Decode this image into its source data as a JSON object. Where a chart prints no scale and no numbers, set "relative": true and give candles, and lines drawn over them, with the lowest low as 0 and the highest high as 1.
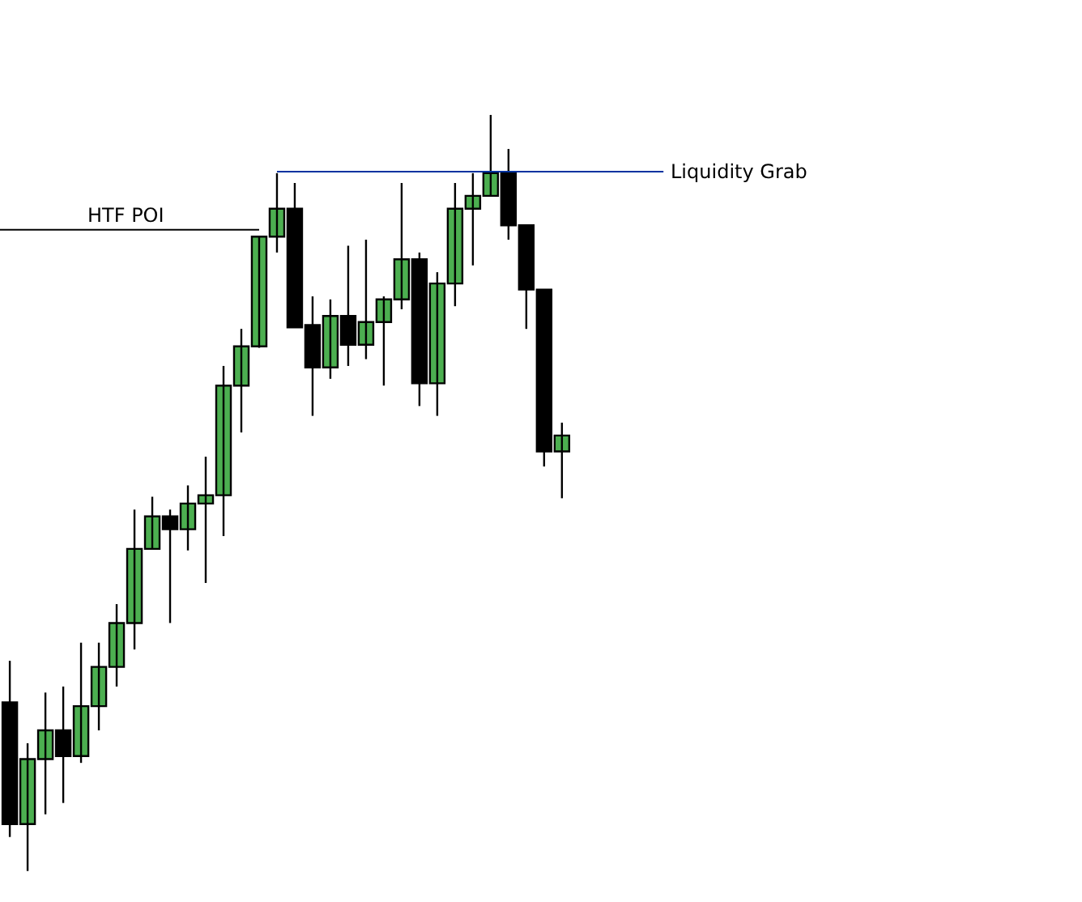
{
  "chart_data": {
    "type": "candlestick",
    "relative": true,
    "categories": [
      null,
      null,
      null,
      null,
      null,
      null,
      null,
      null,
      null,
      null,
      null,
      null,
      null,
      null,
      null,
      null,
      null,
      null,
      null,
      null,
      null,
      null,
      null,
      null,
      null,
      null,
      null,
      null,
      null,
      null,
      null,
      null
    ],
    "ohlc": [
      [
        0.223,
        0.278,
        0.045,
        0.062
      ],
      [
        0.062,
        0.169,
        0.0,
        0.148
      ],
      [
        0.148,
        0.236,
        0.075,
        0.186
      ],
      [
        0.186,
        0.244,
        0.09,
        0.152
      ],
      [
        0.152,
        0.302,
        0.143,
        0.218
      ],
      [
        0.218,
        0.302,
        0.186,
        0.27
      ],
      [
        0.27,
        0.353,
        0.244,
        0.328
      ],
      [
        0.328,
        0.478,
        0.293,
        0.426
      ],
      [
        0.426,
        0.495,
        0.426,
        0.469
      ],
      [
        0.469,
        0.478,
        0.328,
        0.452
      ],
      [
        0.452,
        0.51,
        0.424,
        0.486
      ],
      [
        0.486,
        0.548,
        0.381,
        0.497
      ],
      [
        0.497,
        0.668,
        0.443,
        0.642
      ],
      [
        0.642,
        0.717,
        0.58,
        0.694
      ],
      [
        0.694,
        0.839,
        0.692,
        0.839
      ],
      [
        0.839,
        0.923,
        0.818,
        0.876
      ],
      [
        0.876,
        0.91,
        0.719,
        0.719
      ],
      [
        0.722,
        0.76,
        0.602,
        0.666
      ],
      [
        0.666,
        0.756,
        0.651,
        0.734
      ],
      [
        0.734,
        0.827,
        0.668,
        0.696
      ],
      [
        0.696,
        0.835,
        0.677,
        0.726
      ],
      [
        0.726,
        0.76,
        0.642,
        0.756
      ],
      [
        0.756,
        0.91,
        0.743,
        0.809
      ],
      [
        0.809,
        0.818,
        0.615,
        0.645
      ],
      [
        0.645,
        0.792,
        0.602,
        0.777
      ],
      [
        0.777,
        0.91,
        0.747,
        0.876
      ],
      [
        0.876,
        0.923,
        0.801,
        0.893
      ],
      [
        0.893,
        1.0,
        0.893,
        0.923
      ],
      [
        0.923,
        0.955,
        0.835,
        0.854
      ],
      [
        0.854,
        0.854,
        0.717,
        0.769
      ],
      [
        0.769,
        0.769,
        0.535,
        0.555
      ],
      [
        0.555,
        0.593,
        0.493,
        0.576
      ]
    ],
    "colors": [
      "#000000",
      "#4caf50",
      "#4caf50",
      "#000000",
      "#4caf50",
      "#4caf50",
      "#4caf50",
      "#4caf50",
      "#4caf50",
      "#000000",
      "#4caf50",
      "#4caf50",
      "#4caf50",
      "#4caf50",
      "#4caf50",
      "#4caf50",
      "#000000",
      "#000000",
      "#4caf50",
      "#000000",
      "#4caf50",
      "#4caf50",
      "#4caf50",
      "#000000",
      "#4caf50",
      "#4caf50",
      "#4caf50",
      "#4caf50",
      "#000000",
      "#000000",
      "#000000",
      "#4caf50"
    ],
    "ref_lines": [
      {
        "axis": "y",
        "value": 0.848,
        "label": "HTF POI",
        "color": "#000000"
      },
      {
        "axis": "y",
        "value": 0.925,
        "label": "Liquidity Grab",
        "color": "#0033a0"
      }
    ]
  }
}
